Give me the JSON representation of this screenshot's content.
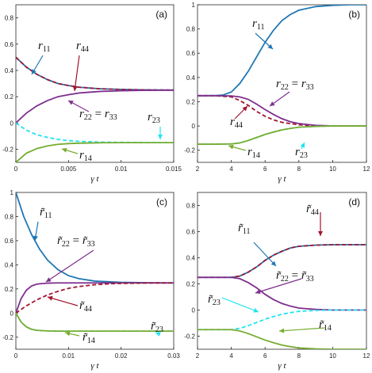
{
  "colors": {
    "blue": "#1f77b4",
    "red": "#a2142f",
    "purple": "#7e2f8e",
    "cyan": "#1fe3f0",
    "green": "#77ac30"
  },
  "chart_data": [
    {
      "type": "line",
      "panel_label": "(a)",
      "xlabel": "γ t",
      "xlim": [
        0,
        0.015
      ],
      "ylim": [
        -0.3,
        0.9
      ],
      "xticks": [
        0,
        0.005,
        0.01,
        0.015
      ],
      "xtick_labels": [
        "0",
        "0.005",
        "0.01",
        "0.015"
      ],
      "yticks": [
        -0.2,
        0,
        0.2,
        0.4,
        0.6,
        0.8
      ],
      "ytick_labels": [
        "-0.2",
        "0",
        "0.2",
        "0.4",
        "0.6",
        "0.8"
      ],
      "series": [
        {
          "name": "r11",
          "color": "blue",
          "dash": false,
          "x": [
            0,
            0.001,
            0.002,
            0.003,
            0.004,
            0.005,
            0.006,
            0.008,
            0.01,
            0.012,
            0.015
          ],
          "y": [
            0.5,
            0.425,
            0.37,
            0.33,
            0.3,
            0.285,
            0.272,
            0.26,
            0.255,
            0.252,
            0.25
          ]
        },
        {
          "name": "r44",
          "color": "red",
          "dash": true,
          "x": [
            0,
            0.001,
            0.002,
            0.003,
            0.004,
            0.005,
            0.006,
            0.008,
            0.01,
            0.012,
            0.015
          ],
          "y": [
            0.5,
            0.425,
            0.37,
            0.33,
            0.3,
            0.285,
            0.272,
            0.26,
            0.255,
            0.252,
            0.25
          ]
        },
        {
          "name": "r22 = r33",
          "color": "purple",
          "dash": false,
          "x": [
            0,
            0.001,
            0.002,
            0.003,
            0.004,
            0.005,
            0.006,
            0.008,
            0.01,
            0.012,
            0.015
          ],
          "y": [
            0,
            0.075,
            0.13,
            0.17,
            0.2,
            0.215,
            0.228,
            0.24,
            0.245,
            0.248,
            0.25
          ]
        },
        {
          "name": "r23",
          "color": "cyan",
          "dash": true,
          "x": [
            0,
            0.001,
            0.002,
            0.003,
            0.004,
            0.005,
            0.006,
            0.008,
            0.01,
            0.012,
            0.015
          ],
          "y": [
            0,
            -0.055,
            -0.09,
            -0.11,
            -0.125,
            -0.135,
            -0.14,
            -0.146,
            -0.148,
            -0.149,
            -0.15
          ]
        },
        {
          "name": "r14",
          "color": "green",
          "dash": false,
          "x": [
            0,
            0.001,
            0.002,
            0.003,
            0.004,
            0.005,
            0.006,
            0.008,
            0.01,
            0.012,
            0.015
          ],
          "y": [
            -0.3,
            -0.23,
            -0.195,
            -0.175,
            -0.163,
            -0.157,
            -0.154,
            -0.151,
            -0.15,
            -0.15,
            -0.15
          ]
        }
      ],
      "annotations": [
        {
          "base": "r",
          "sub": "11",
          "tilde": false,
          "color": "blue"
        },
        {
          "base": "r",
          "sub": "44",
          "tilde": false,
          "color": "red"
        },
        {
          "base": "r",
          "sub": "22",
          "eq": "r",
          "sub2": "33",
          "tilde": false,
          "color": "purple"
        },
        {
          "base": "r",
          "sub": "23",
          "tilde": false,
          "color": "cyan"
        },
        {
          "base": "r",
          "sub": "14",
          "tilde": false,
          "color": "green"
        }
      ]
    },
    {
      "type": "line",
      "panel_label": "(b)",
      "xlabel": "γ t",
      "xlim": [
        2,
        12
      ],
      "ylim": [
        -0.3,
        1.0
      ],
      "xticks": [
        2,
        4,
        6,
        8,
        10,
        12
      ],
      "xtick_labels": [
        "2",
        "4",
        "6",
        "8",
        "10",
        "12"
      ],
      "yticks": [
        -0.2,
        0,
        0.2,
        0.4,
        0.6,
        0.8,
        1
      ],
      "ytick_labels": [
        "-0.2",
        "0",
        "0.2",
        "0.4",
        "0.6",
        "0.8",
        "1"
      ],
      "series": [
        {
          "name": "r11",
          "color": "blue",
          "dash": false,
          "x": [
            2,
            3,
            3.5,
            4,
            4.5,
            5,
            5.5,
            6,
            6.5,
            7,
            7.5,
            8,
            9,
            10,
            11,
            12
          ],
          "y": [
            0.25,
            0.25,
            0.255,
            0.28,
            0.35,
            0.45,
            0.57,
            0.69,
            0.79,
            0.87,
            0.92,
            0.955,
            0.985,
            0.995,
            1.0,
            1.0
          ]
        },
        {
          "name": "r44",
          "color": "red",
          "dash": true,
          "x": [
            2,
            3,
            4,
            4.5,
            5,
            5.5,
            6,
            6.5,
            7,
            8,
            9,
            10,
            12
          ],
          "y": [
            0.25,
            0.25,
            0.24,
            0.21,
            0.17,
            0.12,
            0.08,
            0.05,
            0.03,
            0.01,
            0.0,
            0.0,
            0.0
          ]
        },
        {
          "name": "r22 = r33",
          "color": "purple",
          "dash": false,
          "x": [
            2,
            3,
            4,
            4.5,
            5,
            5.5,
            6,
            6.5,
            7,
            7.5,
            8,
            9,
            10,
            12
          ],
          "y": [
            0.25,
            0.25,
            0.248,
            0.24,
            0.22,
            0.18,
            0.135,
            0.095,
            0.06,
            0.035,
            0.02,
            0.005,
            0.0,
            0.0
          ]
        },
        {
          "name": "r23",
          "color": "cyan",
          "dash": true,
          "x": [
            2,
            3,
            4,
            4.5,
            5,
            5.5,
            6,
            6.5,
            7,
            7.5,
            8,
            9,
            10,
            12
          ],
          "y": [
            -0.15,
            -0.15,
            -0.148,
            -0.14,
            -0.12,
            -0.095,
            -0.07,
            -0.05,
            -0.032,
            -0.02,
            -0.01,
            -0.003,
            0.0,
            0.0
          ]
        },
        {
          "name": "r14",
          "color": "green",
          "dash": false,
          "x": [
            2,
            3,
            4,
            4.5,
            5,
            5.5,
            6,
            6.5,
            7,
            7.5,
            8,
            9,
            10,
            12
          ],
          "y": [
            -0.15,
            -0.15,
            -0.148,
            -0.14,
            -0.12,
            -0.095,
            -0.07,
            -0.05,
            -0.032,
            -0.02,
            -0.01,
            -0.003,
            0.0,
            0.0
          ]
        }
      ],
      "annotations": [
        {
          "base": "r",
          "sub": "11",
          "tilde": false,
          "color": "blue"
        },
        {
          "base": "r",
          "sub": "22",
          "eq": "r",
          "sub2": "33",
          "tilde": false,
          "color": "purple"
        },
        {
          "base": "r",
          "sub": "44",
          "tilde": false,
          "color": "red"
        },
        {
          "base": "r",
          "sub": "14",
          "tilde": false,
          "color": "green"
        },
        {
          "base": "r",
          "sub": "23",
          "tilde": false,
          "color": "cyan"
        }
      ]
    },
    {
      "type": "line",
      "panel_label": "(c)",
      "xlabel": "γ t",
      "xlim": [
        0,
        0.03
      ],
      "ylim": [
        -0.3,
        1.0
      ],
      "xticks": [
        0,
        0.01,
        0.02,
        0.03
      ],
      "xtick_labels": [
        "0",
        "0.01",
        "0.02",
        "0.03"
      ],
      "yticks": [
        -0.2,
        0,
        0.2,
        0.4,
        0.6,
        0.8,
        1
      ],
      "ytick_labels": [
        "-0.2",
        "0",
        "0.2",
        "0.4",
        "0.6",
        "0.8",
        "1"
      ],
      "series": [
        {
          "name": "r11",
          "color": "blue",
          "dash": false,
          "x": [
            0,
            0.0015,
            0.003,
            0.0045,
            0.006,
            0.008,
            0.01,
            0.012,
            0.015,
            0.02,
            0.025,
            0.03
          ],
          "y": [
            1.0,
            0.8,
            0.65,
            0.53,
            0.44,
            0.36,
            0.31,
            0.285,
            0.265,
            0.255,
            0.251,
            0.25
          ]
        },
        {
          "name": "r22 = r33",
          "color": "purple",
          "dash": false,
          "x": [
            0,
            0.001,
            0.002,
            0.003,
            0.004,
            0.006,
            0.008,
            0.01,
            0.015,
            0.02,
            0.03
          ],
          "y": [
            0,
            0.12,
            0.19,
            0.225,
            0.24,
            0.248,
            0.25,
            0.25,
            0.25,
            0.25,
            0.25
          ]
        },
        {
          "name": "r44",
          "color": "red",
          "dash": true,
          "x": [
            0,
            0.002,
            0.004,
            0.006,
            0.008,
            0.01,
            0.012,
            0.015,
            0.018,
            0.02,
            0.025,
            0.03
          ],
          "y": [
            0,
            0.06,
            0.11,
            0.15,
            0.18,
            0.205,
            0.22,
            0.235,
            0.243,
            0.246,
            0.249,
            0.25
          ]
        },
        {
          "name": "r23",
          "color": "cyan",
          "dash": true,
          "x": [
            0,
            0.001,
            0.002,
            0.003,
            0.004,
            0.006,
            0.008,
            0.01,
            0.015,
            0.02,
            0.03
          ],
          "y": [
            0,
            -0.075,
            -0.115,
            -0.135,
            -0.143,
            -0.148,
            -0.15,
            -0.15,
            -0.15,
            -0.15,
            -0.15
          ]
        },
        {
          "name": "r14",
          "color": "green",
          "dash": false,
          "x": [
            0,
            0.001,
            0.002,
            0.003,
            0.004,
            0.006,
            0.008,
            0.01,
            0.015,
            0.02,
            0.03
          ],
          "y": [
            0,
            -0.075,
            -0.115,
            -0.135,
            -0.143,
            -0.148,
            -0.15,
            -0.15,
            -0.15,
            -0.15,
            -0.15
          ]
        }
      ],
      "annotations": [
        {
          "base": "r",
          "sub": "11",
          "tilde": true,
          "color": "blue"
        },
        {
          "base": "r",
          "sub": "22",
          "eq": "r",
          "sub2": "33",
          "tilde": true,
          "color": "purple"
        },
        {
          "base": "r",
          "sub": "44",
          "tilde": true,
          "color": "red"
        },
        {
          "base": "r",
          "sub": "23",
          "tilde": true,
          "color": "cyan"
        },
        {
          "base": "r",
          "sub": "14",
          "tilde": true,
          "color": "green"
        }
      ]
    },
    {
      "type": "line",
      "panel_label": "(d)",
      "xlabel": "γ t",
      "xlim": [
        2,
        12
      ],
      "ylim": [
        -0.3,
        0.9
      ],
      "xticks": [
        2,
        4,
        6,
        8,
        10,
        12
      ],
      "xtick_labels": [
        "2",
        "4",
        "6",
        "8",
        "10",
        "12"
      ],
      "yticks": [
        -0.2,
        0,
        0.2,
        0.4,
        0.6,
        0.8
      ],
      "ytick_labels": [
        "-0.2",
        "0",
        "0.2",
        "0.4",
        "0.6",
        "0.8"
      ],
      "series": [
        {
          "name": "r11",
          "color": "blue",
          "dash": false,
          "x": [
            2,
            3,
            4,
            4.5,
            5,
            5.5,
            6,
            6.5,
            7,
            7.5,
            8,
            9,
            10,
            12
          ],
          "y": [
            0.25,
            0.25,
            0.25,
            0.26,
            0.29,
            0.33,
            0.38,
            0.42,
            0.45,
            0.475,
            0.488,
            0.497,
            0.5,
            0.5
          ]
        },
        {
          "name": "r44",
          "color": "red",
          "dash": true,
          "x": [
            2,
            3,
            4,
            4.5,
            5,
            5.5,
            6,
            6.5,
            7,
            7.5,
            8,
            9,
            10,
            12
          ],
          "y": [
            0.25,
            0.25,
            0.25,
            0.26,
            0.29,
            0.33,
            0.38,
            0.42,
            0.45,
            0.475,
            0.488,
            0.497,
            0.5,
            0.5
          ]
        },
        {
          "name": "r22 = r33",
          "color": "purple",
          "dash": false,
          "x": [
            2,
            3,
            4,
            4.5,
            5,
            5.5,
            6,
            6.5,
            7,
            7.5,
            8,
            9,
            10,
            12
          ],
          "y": [
            0.25,
            0.25,
            0.25,
            0.24,
            0.21,
            0.17,
            0.12,
            0.08,
            0.05,
            0.03,
            0.015,
            0.005,
            0.0,
            0.0
          ]
        },
        {
          "name": "r23",
          "color": "cyan",
          "dash": true,
          "x": [
            2,
            3,
            4,
            4.5,
            5,
            5.5,
            6,
            6.5,
            7,
            7.5,
            8,
            9,
            10,
            12
          ],
          "y": [
            -0.15,
            -0.15,
            -0.15,
            -0.14,
            -0.12,
            -0.095,
            -0.07,
            -0.05,
            -0.032,
            -0.02,
            -0.01,
            -0.003,
            0.0,
            0.0
          ]
        },
        {
          "name": "r14",
          "color": "green",
          "dash": false,
          "x": [
            2,
            3,
            4,
            4.5,
            5,
            5.5,
            6,
            6.5,
            7,
            7.5,
            8,
            9,
            10,
            12
          ],
          "y": [
            -0.15,
            -0.15,
            -0.15,
            -0.16,
            -0.18,
            -0.205,
            -0.23,
            -0.25,
            -0.268,
            -0.28,
            -0.29,
            -0.297,
            -0.3,
            -0.3
          ]
        }
      ],
      "annotations": [
        {
          "base": "r",
          "sub": "44",
          "tilde": true,
          "color": "red"
        },
        {
          "base": "r",
          "sub": "11",
          "tilde": true,
          "color": "blue"
        },
        {
          "base": "r",
          "sub": "22",
          "eq": "r",
          "sub2": "33",
          "tilde": true,
          "color": "purple"
        },
        {
          "base": "r",
          "sub": "23",
          "tilde": true,
          "color": "cyan"
        },
        {
          "base": "r",
          "sub": "14",
          "tilde": true,
          "color": "green"
        }
      ]
    }
  ]
}
